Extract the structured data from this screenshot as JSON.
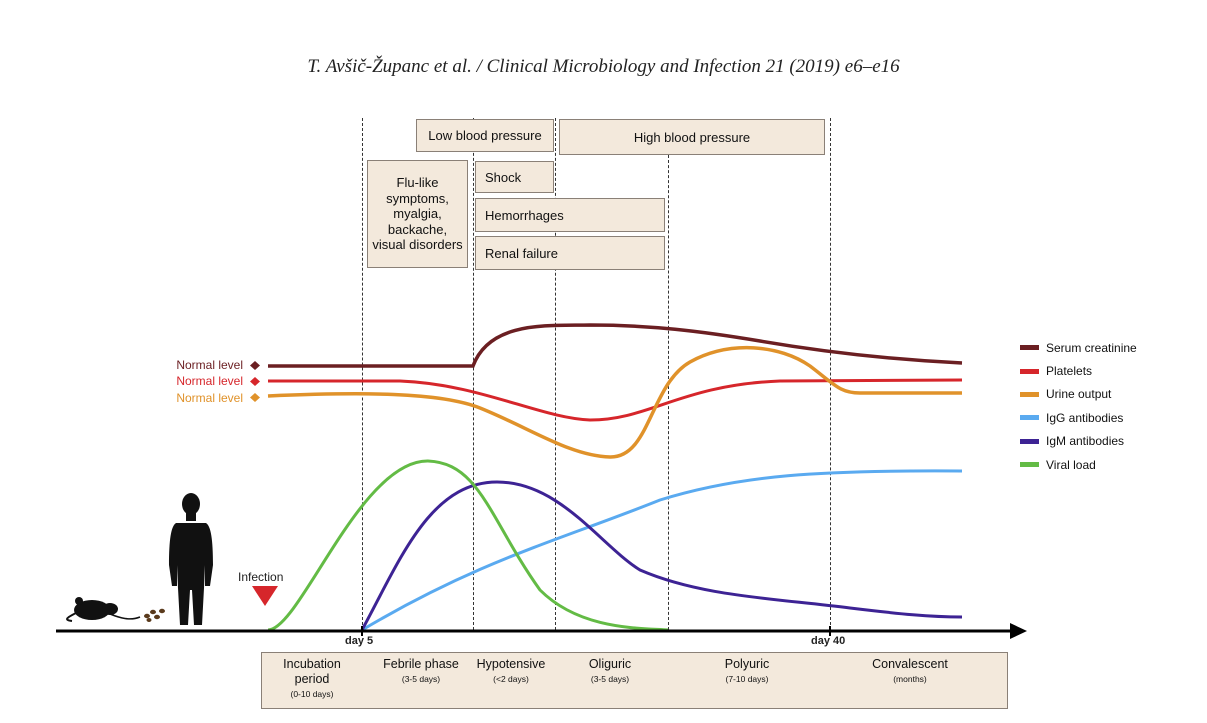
{
  "header": {
    "citation": "T. Avšič-Županc et al. / Clinical Microbiology and Infection 21 (2019) e6–e16"
  },
  "boxes": {
    "low_bp": "Low blood pressure",
    "high_bp": "High blood pressure",
    "flu_lines": [
      "Flu-like",
      "symptoms,",
      "myalgia,",
      "backache,",
      "visual disorders"
    ],
    "shock": "Shock",
    "hemorrhages": "Hemorrhages",
    "renal": "Renal failure"
  },
  "normal_labels": [
    "Normal level",
    "Normal level",
    "Normal level"
  ],
  "legend": [
    {
      "label": "Serum creatinine",
      "color": "#6b1f22"
    },
    {
      "label": "Platelets",
      "color": "#d6262b"
    },
    {
      "label": "Urine output",
      "color": "#e0922a"
    },
    {
      "label": "IgG antibodies",
      "color": "#5aaaf0"
    },
    {
      "label": "IgM antibodies",
      "color": "#3d2394"
    },
    {
      "label": "Viral load",
      "color": "#63bb45"
    }
  ],
  "axis": {
    "day5": "day 5",
    "day40": "day 40"
  },
  "infection_label": "Infection",
  "phases": [
    {
      "name_lines": [
        "Incubation",
        "period"
      ],
      "duration": "(0-10 days)"
    },
    {
      "name_lines": [
        "Febrile phase"
      ],
      "duration": "(3-5 days)"
    },
    {
      "name_lines": [
        "Hypotensive"
      ],
      "duration": "(<2 days)"
    },
    {
      "name_lines": [
        "Oliguric"
      ],
      "duration": "(3-5 days)"
    },
    {
      "name_lines": [
        "Polyuric"
      ],
      "duration": "(7-10 days)"
    },
    {
      "name_lines": [
        "Convalescent"
      ],
      "duration": "(months)"
    }
  ],
  "icons": [
    "mouse-icon",
    "droppings-icon",
    "human-silhouette-icon",
    "infection-triangle-icon",
    "axis-arrow-icon"
  ]
}
